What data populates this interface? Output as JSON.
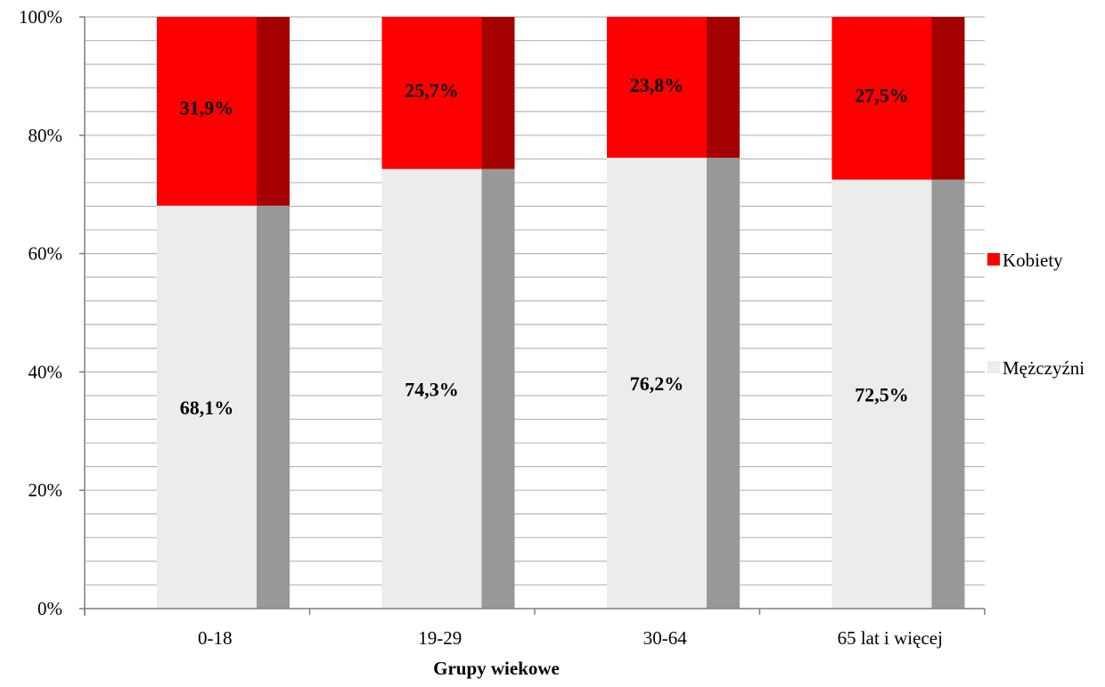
{
  "chart_data": {
    "type": "bar",
    "stacked": true,
    "normalized": true,
    "categories": [
      "0-18",
      "19-29",
      "30-64",
      "65 lat i więcej"
    ],
    "series": [
      {
        "name": "Mężczyźni",
        "values": [
          68.1,
          74.3,
          76.2,
          72.5
        ],
        "labels": [
          "68,1%",
          "74,3%",
          "76,2%",
          "72,5%"
        ],
        "color": "#ececec",
        "side_color": "#989898"
      },
      {
        "name": "Kobiety",
        "values": [
          31.9,
          25.7,
          23.8,
          27.5
        ],
        "labels": [
          "31,9%",
          "25,7%",
          "23,8%",
          "27,5%"
        ],
        "color": "#ff0000",
        "side_color": "#a50000"
      }
    ],
    "xlabel": "Grupy wiekowe",
    "ylabel": "",
    "ylim": [
      0,
      100
    ],
    "y_ticks": [
      "0%",
      "20%",
      "40%",
      "60%",
      "80%",
      "100%"
    ],
    "y_minor_step": 4,
    "grid": true,
    "legend": {
      "placement": "right",
      "items": [
        "Kobiety",
        "Mężczyźni"
      ]
    },
    "gridline_color": "#b8b8b8"
  }
}
